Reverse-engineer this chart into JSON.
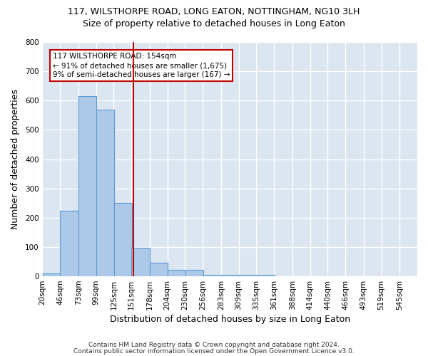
{
  "title": "117, WILSTHORPE ROAD, LONG EATON, NOTTINGHAM, NG10 3LH",
  "subtitle": "Size of property relative to detached houses in Long Eaton",
  "xlabel": "Distribution of detached houses by size in Long Eaton",
  "ylabel": "Number of detached properties",
  "bin_labels": [
    "20sqm",
    "46sqm",
    "73sqm",
    "99sqm",
    "125sqm",
    "151sqm",
    "178sqm",
    "204sqm",
    "230sqm",
    "256sqm",
    "283sqm",
    "309sqm",
    "335sqm",
    "361sqm",
    "388sqm",
    "414sqm",
    "440sqm",
    "466sqm",
    "493sqm",
    "519sqm",
    "545sqm"
  ],
  "bin_left_edges": [
    20,
    46,
    73,
    99,
    125,
    151,
    178,
    204,
    230,
    256,
    283,
    309,
    335,
    361,
    388,
    414,
    440,
    466,
    493,
    519
  ],
  "bin_width": 27,
  "bar_heights": [
    10,
    225,
    615,
    570,
    250,
    97,
    46,
    22,
    22,
    5,
    5,
    5,
    5,
    0,
    0,
    0,
    0,
    0,
    0,
    0
  ],
  "bar_color": "#aec9e8",
  "bar_edge_color": "#5b9bd5",
  "figure_bg": "#ffffff",
  "axes_bg": "#dce6f1",
  "grid_color": "#ffffff",
  "vline_x": 154,
  "vline_color": "#c00000",
  "annotation_line1": "117 WILSTHORPE ROAD: 154sqm",
  "annotation_line2": "← 91% of detached houses are smaller (1,675)",
  "annotation_line3": "9% of semi-detached houses are larger (167) →",
  "annotation_box_facecolor": "#ffffff",
  "annotation_box_edgecolor": "#c00000",
  "ylim": [
    0,
    800
  ],
  "yticks": [
    0,
    100,
    200,
    300,
    400,
    500,
    600,
    700,
    800
  ],
  "xlim_left": 20,
  "xlim_right": 572,
  "footnote1": "Contains HM Land Registry data © Crown copyright and database right 2024.",
  "footnote2": "Contains public sector information licensed under the Open Government Licence v3.0.",
  "title_fontsize": 9,
  "subtitle_fontsize": 9,
  "xlabel_fontsize": 9,
  "ylabel_fontsize": 9,
  "tick_fontsize": 7.5,
  "annot_fontsize": 7.5,
  "footnote_fontsize": 6.5
}
